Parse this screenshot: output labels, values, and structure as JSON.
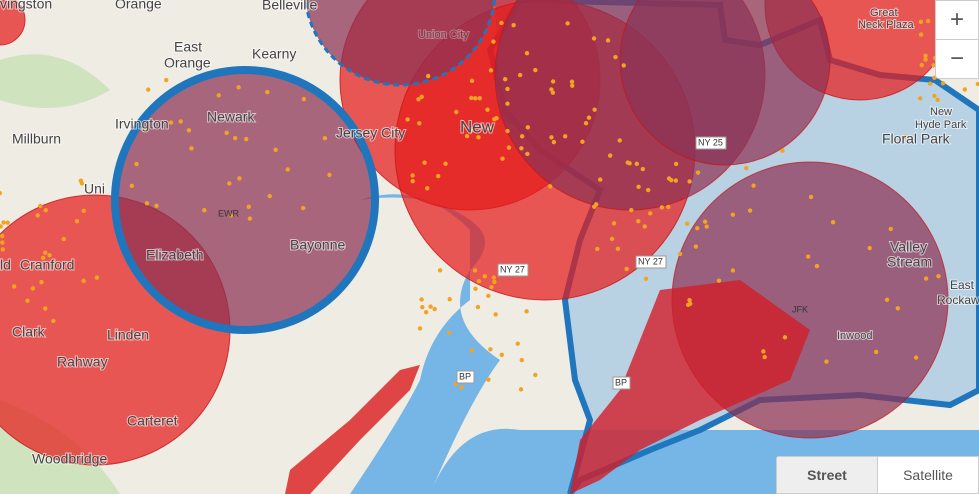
{
  "places": [
    "vingston",
    "Orange",
    "Belleville",
    "East",
    "Orange",
    "Kearny",
    "Millburn",
    "Irvington",
    "Newark",
    "Jersey City",
    "New",
    "Uni",
    "Elizabeth",
    "Bayonne",
    "ld",
    "Cranford",
    "Clark",
    "Linden",
    "Rahway",
    "Carteret",
    "Woodbridge",
    "Great",
    "Neck Plaza",
    "New",
    "Hyde Park",
    "Floral Park",
    "Valley",
    "Stream",
    "East",
    "Rockaw",
    "Inwood",
    "Union City"
  ],
  "shields": [
    "NY 27",
    "NY 27",
    "NY 25",
    "BP",
    "BP",
    "EWR",
    "JFK"
  ],
  "zoom": {
    "in": "+",
    "out": "−"
  },
  "layers": {
    "street": "Street",
    "satellite": "Satellite"
  }
}
